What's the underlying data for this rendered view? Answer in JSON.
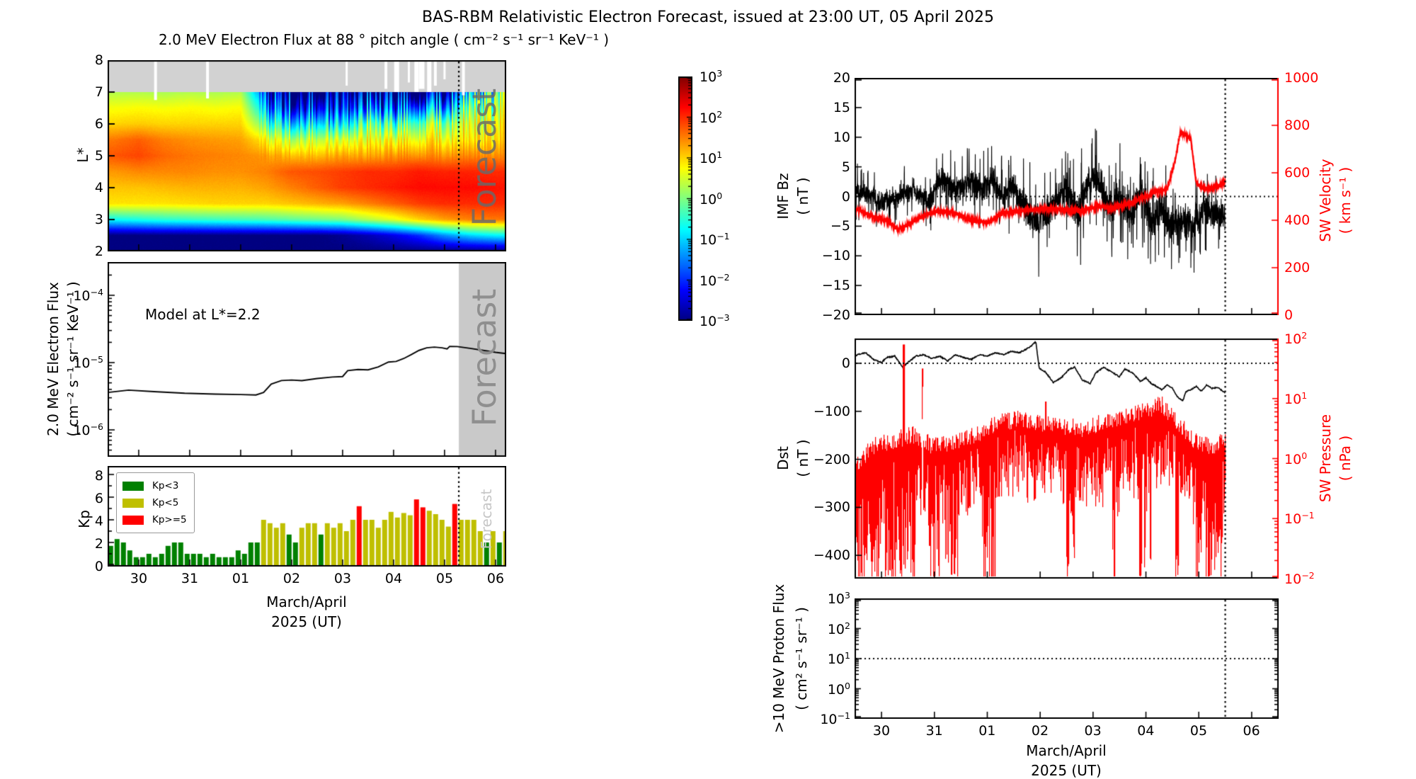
{
  "title": "BAS-RBM Relativistic Electron Forecast, issued at 23:00 UT, 05 April 2025",
  "watermark": "Forecast",
  "xaxis": {
    "tick_labels": [
      "30",
      "31",
      "01",
      "02",
      "03",
      "04",
      "05",
      "06"
    ],
    "label_line1": "March/April",
    "label_line2": "2025 (UT)"
  },
  "panels": {
    "heatmap": {
      "title": "2.0 MeV Electron Flux at 88 ° pitch angle ( cm⁻² s⁻¹ sr⁻¹ KeV⁻¹ )",
      "ylabel": "L*",
      "yticks": [
        8,
        7,
        6,
        5,
        4,
        3,
        2
      ],
      "colorbar_exponents": [
        3,
        2,
        1,
        0,
        -1,
        -2,
        -3
      ]
    },
    "model": {
      "ylabel_line1": "2.0 MeV Electron Flux",
      "ylabel_line2": "( cm⁻² s⁻¹ sr⁻¹ KeV⁻¹ )",
      "annotation": "Model at L*=2.2",
      "ytick_exponents": [
        -4,
        -5,
        -6
      ]
    },
    "kp": {
      "ylabel": "Kp",
      "yticks": [
        8,
        6,
        4,
        2,
        0
      ],
      "legend": [
        {
          "label": "Kp<3",
          "color": "#008000"
        },
        {
          "label": "Kp<5",
          "color": "#bfbf00"
        },
        {
          "label": "Kp>=5",
          "color": "#ff0000"
        }
      ]
    },
    "imf": {
      "ylabel_line1": "IMF Bz",
      "ylabel_line2": "( nT )",
      "yticks": [
        20,
        15,
        10,
        5,
        0,
        -5,
        -10,
        -15,
        -20
      ],
      "right_label_line1": "SW Velocity",
      "right_label_line2": "( km s⁻¹ )",
      "right_ticks": [
        1000,
        800,
        600,
        400,
        200,
        0
      ],
      "right_color": "#ff0000"
    },
    "dst": {
      "ylabel_line1": "Dst",
      "ylabel_line2": "( nT )",
      "yticks": [
        0,
        -100,
        -200,
        -300,
        -400
      ],
      "right_label_line1": "SW Pressure",
      "right_label_line2": "( nPa )",
      "right_exponents": [
        2,
        1,
        0,
        -1,
        -2
      ],
      "right_color": "#ff0000"
    },
    "proton": {
      "ylabel_line1": ">10 MeV Proton Flux",
      "ylabel_line2": "( cm² s⁻¹ sr⁻¹ )",
      "ytick_exponents": [
        3,
        2,
        1,
        0,
        -1
      ]
    }
  },
  "chart_data": {
    "time_convention": "decimal days since 00:00 UT 29 March 2025; tick 1 = Mar 30 ... tick 8 = Apr 06",
    "forecast_boundary_day": {
      "left_column": 7.28,
      "right_column": 7.5
    },
    "heatmap": {
      "type": "heatmap",
      "colormap": "jet",
      "clim_log10": [
        -3,
        3
      ],
      "lstar_range": [
        2,
        8
      ],
      "nodata_lstar_band": [
        7,
        8
      ],
      "x_days": [
        0.5,
        1,
        1.5,
        2,
        2.5,
        3,
        3.5,
        4,
        4.5,
        5,
        5.5,
        6,
        6.5,
        7,
        7.5,
        8,
        8.5
      ],
      "lstar": [
        7,
        6.5,
        6,
        5.5,
        5,
        4.5,
        4,
        3.5,
        3,
        2.5,
        2
      ],
      "log10_flux": [
        [
          0.3,
          0.3,
          0.25,
          0.3,
          0.25,
          0.3,
          -2.0,
          -2.6,
          -2.4,
          -2.7,
          -2.4,
          -2.7,
          -2.4,
          -2.6,
          -0.5,
          0.1,
          0.1
        ],
        [
          0.7,
          0.75,
          0.7,
          0.75,
          0.7,
          0.75,
          -1.2,
          -1.8,
          -1.6,
          -2.0,
          -1.3,
          -1.8,
          -0.9,
          -1.3,
          0.3,
          0.5,
          0.5
        ],
        [
          1.0,
          1.05,
          1.0,
          1.0,
          1.0,
          1.0,
          -0.2,
          -0.7,
          -0.5,
          -0.9,
          0.1,
          -0.4,
          0.4,
          0.1,
          0.8,
          0.85,
          0.85
        ],
        [
          1.55,
          1.7,
          1.5,
          1.4,
          1.35,
          1.3,
          0.8,
          0.5,
          0.6,
          0.5,
          0.8,
          0.7,
          1.0,
          0.8,
          1.0,
          1.05,
          1.05
        ],
        [
          1.75,
          1.85,
          1.65,
          1.55,
          1.5,
          1.45,
          1.35,
          1.2,
          1.2,
          1.3,
          1.3,
          1.4,
          1.5,
          1.4,
          1.5,
          1.45,
          1.45
        ],
        [
          1.35,
          1.45,
          1.45,
          1.45,
          1.4,
          1.4,
          1.5,
          1.75,
          1.8,
          1.9,
          2.0,
          2.0,
          2.1,
          2.05,
          2.05,
          2.0,
          2.0
        ],
        [
          1.1,
          1.1,
          1.15,
          1.2,
          1.2,
          1.2,
          1.3,
          1.5,
          1.7,
          1.9,
          2.0,
          2.1,
          2.2,
          2.2,
          2.2,
          2.15,
          2.1
        ],
        [
          0.9,
          0.9,
          0.9,
          0.95,
          1.0,
          1.0,
          1.0,
          1.1,
          1.2,
          1.3,
          1.5,
          1.7,
          1.9,
          2.0,
          2.0,
          2.0,
          1.95
        ],
        [
          -0.7,
          -0.6,
          -0.5,
          -0.45,
          -0.4,
          -0.35,
          -0.3,
          -0.2,
          -0.1,
          0.0,
          0.3,
          0.6,
          1.0,
          1.3,
          1.5,
          1.55,
          1.55
        ],
        [
          -3,
          -3,
          -3,
          -3,
          -3,
          -3,
          -3,
          -3,
          -3,
          -2.9,
          -2.7,
          -2.4,
          -2.0,
          -1.4,
          -1.0,
          -0.8,
          -0.7
        ],
        [
          -3,
          -3,
          -3,
          -3,
          -3,
          -3,
          -3,
          -3,
          -3,
          -3,
          -3,
          -3,
          -3,
          -3,
          -3,
          -3,
          -3
        ]
      ],
      "data_gaps_day": [
        [
          1.33,
          4,
          1.25
        ],
        [
          2.35,
          4,
          1.2
        ],
        [
          5.08,
          3,
          0.8
        ],
        [
          5.85,
          4,
          0.9
        ],
        [
          6.06,
          7,
          1.0
        ],
        [
          6.3,
          3,
          0.7
        ],
        [
          6.45,
          6,
          1.0
        ],
        [
          6.55,
          8,
          0.9
        ],
        [
          6.7,
          6,
          1.0
        ],
        [
          6.82,
          4,
          0.8
        ],
        [
          7.0,
          3,
          0.6
        ],
        [
          7.37,
          4,
          1.1
        ]
      ]
    },
    "model_flux": {
      "type": "line",
      "label": "Model at L*=2.2",
      "units": "cm-2 s-1 sr-1 KeV-1",
      "points": [
        [
          0.4,
          3.6e-06
        ],
        [
          0.8,
          3.9e-06
        ],
        [
          1.3,
          3.7e-06
        ],
        [
          1.9,
          3.5e-06
        ],
        [
          2.5,
          3.4e-06
        ],
        [
          3.0,
          3.35e-06
        ],
        [
          3.3,
          3.3e-06
        ],
        [
          3.45,
          3.6e-06
        ],
        [
          3.6,
          4.8e-06
        ],
        [
          3.8,
          5.4e-06
        ],
        [
          4.0,
          5.5e-06
        ],
        [
          4.2,
          5.4e-06
        ],
        [
          4.5,
          5.8e-06
        ],
        [
          4.8,
          6.1e-06
        ],
        [
          5.0,
          6.2e-06
        ],
        [
          5.1,
          7.6e-06
        ],
        [
          5.3,
          7.9e-06
        ],
        [
          5.5,
          7.8e-06
        ],
        [
          5.7,
          8.6e-06
        ],
        [
          5.9,
          1.02e-05
        ],
        [
          6.05,
          1.04e-05
        ],
        [
          6.2,
          1.15e-05
        ],
        [
          6.35,
          1.32e-05
        ],
        [
          6.5,
          1.52e-05
        ],
        [
          6.65,
          1.66e-05
        ],
        [
          6.8,
          1.7e-05
        ],
        [
          6.95,
          1.66e-05
        ],
        [
          7.05,
          1.6e-05
        ],
        [
          7.1,
          1.74e-05
        ],
        [
          7.25,
          1.73e-05
        ],
        [
          7.5,
          1.63e-05
        ],
        [
          7.8,
          1.5e-05
        ],
        [
          8.0,
          1.42e-05
        ],
        [
          8.2,
          1.36e-05
        ]
      ],
      "ylim_log10": [
        -6.4,
        -3.5
      ]
    },
    "kp": {
      "type": "bar",
      "start_day": 0.45,
      "step_day": 0.125,
      "ylim": [
        0,
        8.6
      ],
      "values": [
        1.7,
        2.3,
        2.0,
        1.3,
        0.7,
        0.7,
        1.0,
        0.7,
        1.0,
        1.7,
        2.0,
        2.0,
        1.0,
        1.0,
        1.0,
        0.7,
        1.0,
        0.7,
        0.7,
        0.7,
        1.3,
        1.0,
        2.0,
        2.0,
        4.0,
        3.7,
        3.3,
        3.7,
        2.7,
        2.0,
        3.3,
        3.7,
        3.7,
        2.7,
        3.7,
        3.3,
        3.7,
        3.0,
        4.0,
        5.2,
        4.0,
        4.0,
        3.3,
        4.0,
        4.7,
        4.2,
        4.6,
        4.4,
        5.8,
        5.1,
        4.8,
        4.5,
        4.0,
        3.4,
        5.4,
        4.0,
        4.0,
        4.0,
        3.0,
        2.0,
        3.0,
        2.0,
        3.0
      ],
      "color_rules": {
        "green": "Kp<3",
        "yellow": "Kp<5",
        "red": "Kp>=5"
      }
    },
    "imf_bz": {
      "type": "line",
      "units": "nT",
      "ylim": [
        -20,
        20
      ],
      "anchors": [
        [
          0.4,
          1.5
        ],
        [
          0.7,
          0.5
        ],
        [
          1.0,
          -1
        ],
        [
          1.3,
          0
        ],
        [
          1.6,
          1
        ],
        [
          1.9,
          -1
        ],
        [
          2.1,
          3
        ],
        [
          2.3,
          2
        ],
        [
          2.5,
          1
        ],
        [
          2.7,
          2.5
        ],
        [
          2.9,
          1
        ],
        [
          3.1,
          3
        ],
        [
          3.3,
          0
        ],
        [
          3.5,
          2
        ],
        [
          3.7,
          -2
        ],
        [
          3.9,
          -4
        ],
        [
          4.1,
          -3
        ],
        [
          4.3,
          -1
        ],
        [
          4.5,
          1
        ],
        [
          4.7,
          -3
        ],
        [
          4.9,
          2
        ],
        [
          5.1,
          3
        ],
        [
          5.3,
          -2
        ],
        [
          5.5,
          0
        ],
        [
          5.7,
          -3
        ],
        [
          5.9,
          1
        ],
        [
          6.1,
          -4
        ],
        [
          6.3,
          -2
        ],
        [
          6.5,
          -5
        ],
        [
          6.7,
          -4
        ],
        [
          6.9,
          -5
        ],
        [
          7.1,
          -2
        ],
        [
          7.3,
          -3
        ],
        [
          7.5,
          -3
        ]
      ],
      "noise_amp_anchors": [
        [
          0.4,
          2.2
        ],
        [
          2.0,
          2.8
        ],
        [
          3.0,
          3.5
        ],
        [
          4.0,
          4.2
        ],
        [
          5.0,
          4.2
        ],
        [
          6.0,
          4.5
        ],
        [
          7.5,
          3.5
        ]
      ]
    },
    "sw_velocity": {
      "type": "line",
      "units": "km/s",
      "ylim": [
        0,
        1000
      ],
      "anchors": [
        [
          0.4,
          460
        ],
        [
          0.7,
          430
        ],
        [
          0.9,
          410
        ],
        [
          1.1,
          400
        ],
        [
          1.3,
          360
        ],
        [
          1.5,
          380
        ],
        [
          1.8,
          420
        ],
        [
          2.1,
          440
        ],
        [
          2.4,
          430
        ],
        [
          2.7,
          400
        ],
        [
          3.0,
          390
        ],
        [
          3.3,
          430
        ],
        [
          3.6,
          440
        ],
        [
          3.9,
          445
        ],
        [
          4.2,
          450
        ],
        [
          4.5,
          445
        ],
        [
          4.8,
          440
        ],
        [
          5.1,
          460
        ],
        [
          5.4,
          450
        ],
        [
          5.7,
          470
        ],
        [
          6.0,
          500
        ],
        [
          6.2,
          520
        ],
        [
          6.4,
          530
        ],
        [
          6.55,
          650
        ],
        [
          6.65,
          770
        ],
        [
          6.75,
          760
        ],
        [
          6.85,
          740
        ],
        [
          6.95,
          560
        ],
        [
          7.1,
          530
        ],
        [
          7.3,
          540
        ],
        [
          7.5,
          560
        ]
      ],
      "noise_amp": 10
    },
    "dst": {
      "type": "line",
      "units": "nT",
      "ylim": [
        -450,
        52
      ],
      "anchors": [
        [
          0.4,
          5
        ],
        [
          0.55,
          18
        ],
        [
          0.7,
          22
        ],
        [
          0.85,
          8
        ],
        [
          1.0,
          2
        ],
        [
          1.1,
          12
        ],
        [
          1.25,
          15
        ],
        [
          1.4,
          -8
        ],
        [
          1.5,
          2
        ],
        [
          1.65,
          15
        ],
        [
          1.8,
          18
        ],
        [
          1.95,
          10
        ],
        [
          2.1,
          15
        ],
        [
          2.25,
          5
        ],
        [
          2.4,
          18
        ],
        [
          2.55,
          12
        ],
        [
          2.7,
          8
        ],
        [
          2.85,
          18
        ],
        [
          3.0,
          15
        ],
        [
          3.15,
          22
        ],
        [
          3.3,
          18
        ],
        [
          3.45,
          25
        ],
        [
          3.6,
          22
        ],
        [
          3.75,
          30
        ],
        [
          3.85,
          38
        ],
        [
          3.92,
          45
        ],
        [
          3.98,
          -10
        ],
        [
          4.1,
          -18
        ],
        [
          4.25,
          -40
        ],
        [
          4.4,
          -30
        ],
        [
          4.55,
          -12
        ],
        [
          4.65,
          -8
        ],
        [
          4.8,
          -35
        ],
        [
          4.95,
          -42
        ],
        [
          5.05,
          -20
        ],
        [
          5.2,
          -8
        ],
        [
          5.35,
          -18
        ],
        [
          5.5,
          -28
        ],
        [
          5.6,
          -12
        ],
        [
          5.75,
          -20
        ],
        [
          5.9,
          -38
        ],
        [
          6.0,
          -30
        ],
        [
          6.1,
          -42
        ],
        [
          6.2,
          -48
        ],
        [
          6.3,
          -55
        ],
        [
          6.4,
          -45
        ],
        [
          6.5,
          -52
        ],
        [
          6.6,
          -70
        ],
        [
          6.7,
          -78
        ],
        [
          6.75,
          -60
        ],
        [
          6.85,
          -55
        ],
        [
          6.95,
          -48
        ],
        [
          7.05,
          -58
        ],
        [
          7.15,
          -45
        ],
        [
          7.25,
          -52
        ],
        [
          7.35,
          -50
        ],
        [
          7.5,
          -62
        ]
      ],
      "noise_amp": 1.2
    },
    "sw_pressure": {
      "type": "line",
      "units": "nPa",
      "ylim_log10": [
        -2,
        2
      ],
      "base_log10_anchors": [
        [
          0.4,
          -0.3
        ],
        [
          0.8,
          0.2
        ],
        [
          1.2,
          0.3
        ],
        [
          1.6,
          0.4
        ],
        [
          2.0,
          0.2
        ],
        [
          2.4,
          0.3
        ],
        [
          2.8,
          0.4
        ],
        [
          3.2,
          0.6
        ],
        [
          3.6,
          0.65
        ],
        [
          4.0,
          0.6
        ],
        [
          4.4,
          0.55
        ],
        [
          4.8,
          0.5
        ],
        [
          5.2,
          0.6
        ],
        [
          5.6,
          0.7
        ],
        [
          6.0,
          0.8
        ],
        [
          6.3,
          0.9
        ],
        [
          6.6,
          0.6
        ],
        [
          6.9,
          0.3
        ],
        [
          7.2,
          0.2
        ],
        [
          7.5,
          0.3
        ]
      ],
      "dropout_windows_day": [
        [
          0.4,
          1.65
        ],
        [
          1.9,
          2.1
        ],
        [
          2.15,
          2.45
        ],
        [
          2.9,
          3.15
        ],
        [
          4.5,
          4.65
        ],
        [
          5.35,
          5.5
        ],
        [
          5.85,
          6.1
        ],
        [
          6.55,
          6.62
        ],
        [
          6.95,
          7.05
        ],
        [
          7.1,
          7.45
        ]
      ],
      "dropout_floor_log10": -2.2,
      "upward_spikes": [
        [
          1.42,
          1.9
        ],
        [
          1.78,
          1.5
        ],
        [
          4.1,
          0.95
        ]
      ]
    },
    "proton_flux": {
      "type": "line",
      "units": "cm2 s-1 sr-1",
      "ylim_log10": [
        -1,
        3
      ],
      "visible_data": false,
      "dotted_reference_log10": 1
    }
  }
}
